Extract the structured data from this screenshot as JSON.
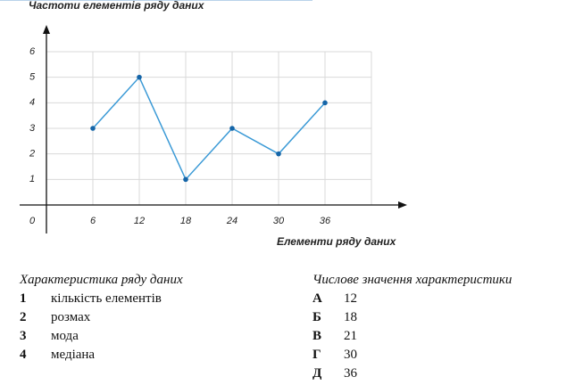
{
  "chart_data": {
    "type": "line",
    "ylabel": "Частоти елементів ряду даних",
    "xlabel": "Елементи ряду даних",
    "x": [
      6,
      12,
      18,
      24,
      30,
      36
    ],
    "values": [
      3,
      5,
      1,
      3,
      2,
      4
    ],
    "color": "#3b9ad6",
    "marker_color": "#1565a8",
    "xlim": [
      0,
      42
    ],
    "ylim": [
      0,
      6
    ],
    "xticks": [
      0,
      6,
      12,
      18,
      24,
      30,
      36
    ],
    "yticks": [
      1,
      2,
      3,
      4,
      5,
      6
    ],
    "grid": true
  },
  "task": {
    "left": {
      "heading": "Характеристика ряду даних",
      "items": [
        {
          "key": "1",
          "text": "кількість елементів"
        },
        {
          "key": "2",
          "text": "розмах"
        },
        {
          "key": "3",
          "text": "мода"
        },
        {
          "key": "4",
          "text": "медіана"
        }
      ]
    },
    "right": {
      "heading": "Числове значення характеристики",
      "items": [
        {
          "key": "А",
          "value": 12
        },
        {
          "key": "Б",
          "value": 18
        },
        {
          "key": "В",
          "value": 21
        },
        {
          "key": "Г",
          "value": 30
        },
        {
          "key": "Д",
          "value": 36
        }
      ]
    }
  }
}
